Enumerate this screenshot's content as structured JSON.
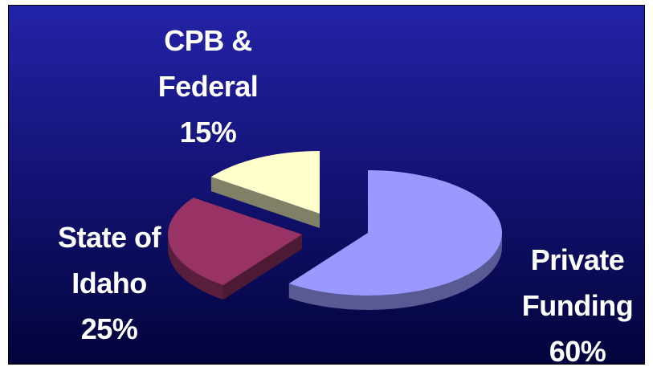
{
  "chart_data": {
    "type": "pie",
    "categories": [
      "Private Funding",
      "State of Idaho",
      "CPB & Federal"
    ],
    "values": [
      60,
      25,
      15
    ],
    "value_labels": [
      "60%",
      "25%",
      "15%"
    ],
    "colors": [
      "#9999ff",
      "#993366",
      "#ffffcc"
    ]
  }
}
